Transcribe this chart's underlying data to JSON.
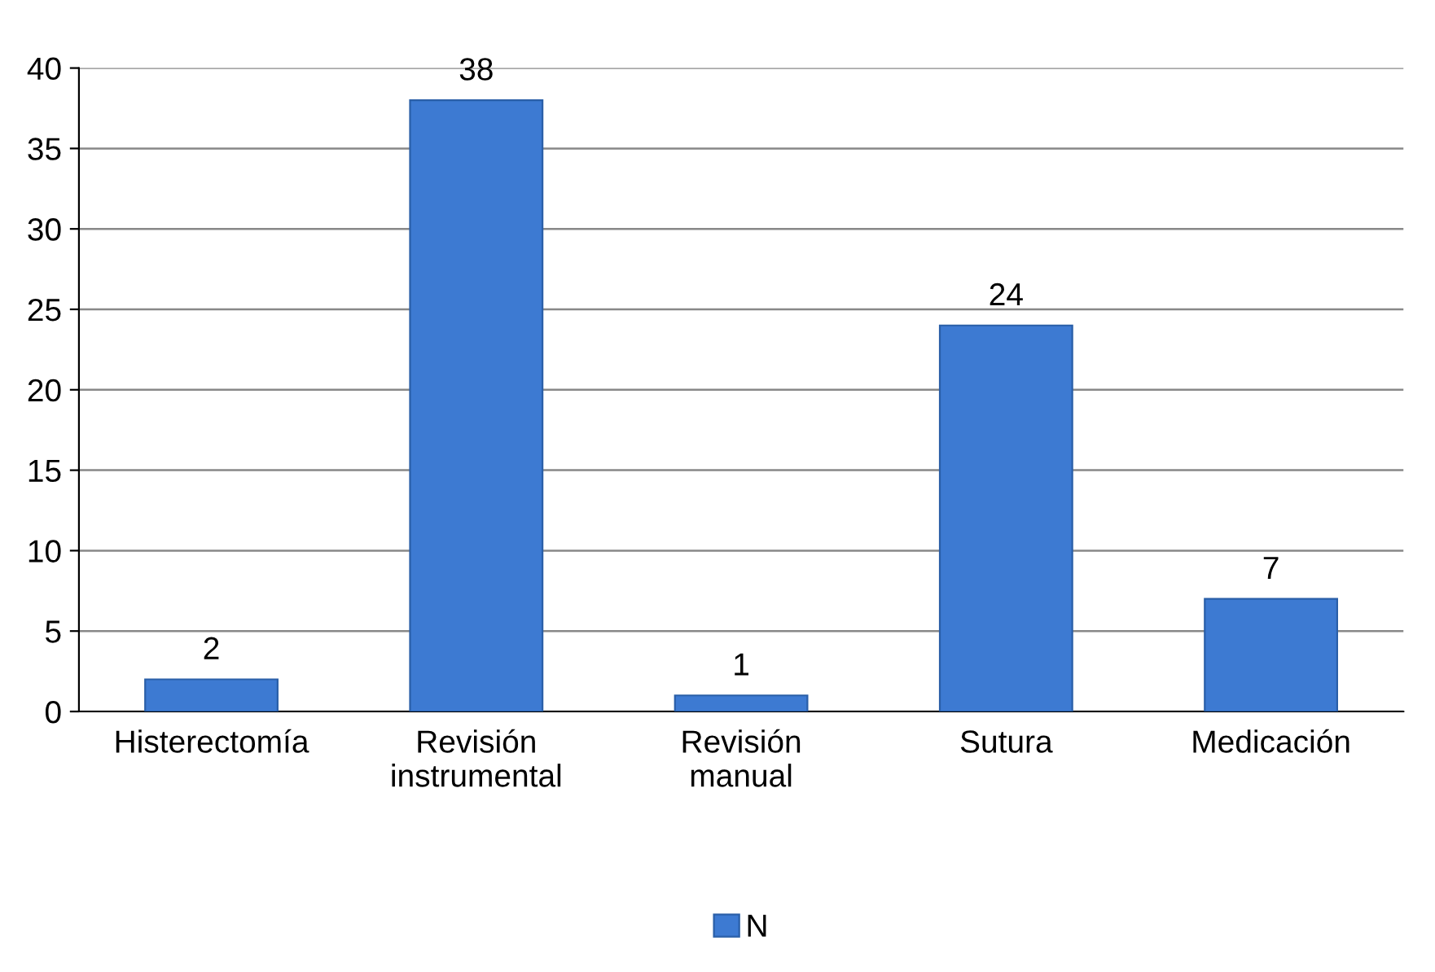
{
  "chart_data": {
    "type": "bar",
    "categories": [
      "Histerectomía",
      "Revisión\ninstrumental",
      "Revisión\nmanual",
      "Sutura",
      "Medicación"
    ],
    "series": [
      {
        "name": "N",
        "color": "#3d7ad2",
        "values": [
          2,
          38,
          1,
          24,
          7
        ]
      }
    ],
    "ylim": [
      0,
      40
    ],
    "yticks": [
      0,
      5,
      10,
      15,
      20,
      25,
      30,
      35,
      40
    ],
    "grid": "y",
    "legend": "bottom",
    "data_labels": true
  }
}
